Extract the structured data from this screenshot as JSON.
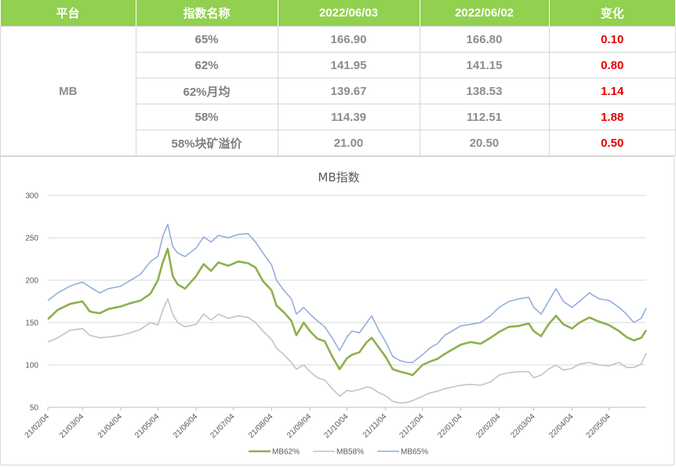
{
  "table": {
    "headers": [
      "平台",
      "指数名称",
      "2022/06/03",
      "2022/06/02",
      "变化"
    ],
    "platform": "MB",
    "rows": [
      {
        "name": "65%",
        "d1": "166.90",
        "d2": "166.80",
        "change": "0.10"
      },
      {
        "name": "62%",
        "d1": "141.95",
        "d2": "141.15",
        "change": "0.80"
      },
      {
        "name": "62%月均",
        "d1": "139.67",
        "d2": "138.53",
        "change": "1.14"
      },
      {
        "name": "58%",
        "d1": "114.39",
        "d2": "112.51",
        "change": "1.88"
      },
      {
        "name": "58%块矿溢价",
        "d1": "21.00",
        "d2": "20.50",
        "change": "0.50"
      }
    ]
  },
  "chart_data": {
    "type": "line",
    "title": "MB指数",
    "xlabel": "",
    "ylabel": "",
    "ylim": [
      50,
      300
    ],
    "yticks": [
      "300",
      "250",
      "200",
      "150",
      "100",
      "50"
    ],
    "xlim": [
      "2021-02-04",
      "2022-06-03"
    ],
    "xticks": [
      "21/02/04",
      "21/03/04",
      "21/04/04",
      "21/05/04",
      "21/06/04",
      "21/07/04",
      "21/08/04",
      "21/09/04",
      "21/10/04",
      "21/11/04",
      "21/12/04",
      "22/01/04",
      "22/02/04",
      "22/03/04",
      "22/04/04",
      "22/05/04"
    ],
    "grid": "horizontal",
    "legend": "bottom",
    "series": [
      {
        "name": "MB62%",
        "color": "#8db04e",
        "points": [
          [
            "2021-02-04",
            154
          ],
          [
            "2021-02-12",
            165
          ],
          [
            "2021-02-22",
            172
          ],
          [
            "2021-03-04",
            175
          ],
          [
            "2021-03-10",
            163
          ],
          [
            "2021-03-18",
            161
          ],
          [
            "2021-03-25",
            166
          ],
          [
            "2021-04-04",
            169
          ],
          [
            "2021-04-12",
            173
          ],
          [
            "2021-04-20",
            176
          ],
          [
            "2021-04-28",
            184
          ],
          [
            "2021-05-04",
            200
          ],
          [
            "2021-05-08",
            221
          ],
          [
            "2021-05-12",
            237
          ],
          [
            "2021-05-16",
            205
          ],
          [
            "2021-05-20",
            195
          ],
          [
            "2021-05-26",
            190
          ],
          [
            "2021-06-04",
            205
          ],
          [
            "2021-06-10",
            219
          ],
          [
            "2021-06-16",
            211
          ],
          [
            "2021-06-22",
            221
          ],
          [
            "2021-06-30",
            217
          ],
          [
            "2021-07-08",
            222
          ],
          [
            "2021-07-16",
            220
          ],
          [
            "2021-07-22",
            215
          ],
          [
            "2021-07-28",
            199
          ],
          [
            "2021-08-04",
            188
          ],
          [
            "2021-08-08",
            170
          ],
          [
            "2021-08-14",
            162
          ],
          [
            "2021-08-20",
            152
          ],
          [
            "2021-08-24",
            135
          ],
          [
            "2021-08-30",
            150
          ],
          [
            "2021-09-04",
            140
          ],
          [
            "2021-09-10",
            131
          ],
          [
            "2021-09-16",
            128
          ],
          [
            "2021-09-22",
            110
          ],
          [
            "2021-09-28",
            95
          ],
          [
            "2021-10-04",
            108
          ],
          [
            "2021-10-08",
            112
          ],
          [
            "2021-10-14",
            115
          ],
          [
            "2021-10-20",
            127
          ],
          [
            "2021-10-24",
            132
          ],
          [
            "2021-10-30",
            120
          ],
          [
            "2021-11-04",
            110
          ],
          [
            "2021-11-10",
            95
          ],
          [
            "2021-11-16",
            92
          ],
          [
            "2021-11-22",
            90
          ],
          [
            "2021-11-26",
            88
          ],
          [
            "2021-12-04",
            100
          ],
          [
            "2021-12-10",
            104
          ],
          [
            "2021-12-16",
            107
          ],
          [
            "2021-12-22",
            113
          ],
          [
            "2022-01-04",
            124
          ],
          [
            "2022-01-12",
            127
          ],
          [
            "2022-01-20",
            125
          ],
          [
            "2022-01-28",
            132
          ],
          [
            "2022-02-04",
            139
          ],
          [
            "2022-02-12",
            145
          ],
          [
            "2022-02-20",
            146
          ],
          [
            "2022-02-28",
            149
          ],
          [
            "2022-03-04",
            140
          ],
          [
            "2022-03-10",
            134
          ],
          [
            "2022-03-16",
            148
          ],
          [
            "2022-03-22",
            158
          ],
          [
            "2022-03-28",
            148
          ],
          [
            "2022-04-04",
            143
          ],
          [
            "2022-04-10",
            150
          ],
          [
            "2022-04-18",
            156
          ],
          [
            "2022-04-26",
            151
          ],
          [
            "2022-05-04",
            147
          ],
          [
            "2022-05-12",
            140
          ],
          [
            "2022-05-18",
            133
          ],
          [
            "2022-05-24",
            129
          ],
          [
            "2022-05-30",
            132
          ],
          [
            "2022-06-03",
            141
          ]
        ]
      },
      {
        "name": "MB58%",
        "color": "#c0c0c0",
        "points": [
          [
            "2021-02-04",
            127
          ],
          [
            "2021-02-12",
            132
          ],
          [
            "2021-02-22",
            141
          ],
          [
            "2021-03-04",
            143
          ],
          [
            "2021-03-10",
            135
          ],
          [
            "2021-03-18",
            132
          ],
          [
            "2021-03-25",
            133
          ],
          [
            "2021-04-04",
            135
          ],
          [
            "2021-04-12",
            138
          ],
          [
            "2021-04-20",
            142
          ],
          [
            "2021-04-28",
            150
          ],
          [
            "2021-05-04",
            147
          ],
          [
            "2021-05-08",
            165
          ],
          [
            "2021-05-12",
            178
          ],
          [
            "2021-05-16",
            160
          ],
          [
            "2021-05-20",
            150
          ],
          [
            "2021-05-26",
            145
          ],
          [
            "2021-06-04",
            148
          ],
          [
            "2021-06-10",
            160
          ],
          [
            "2021-06-16",
            153
          ],
          [
            "2021-06-22",
            160
          ],
          [
            "2021-06-30",
            155
          ],
          [
            "2021-07-08",
            158
          ],
          [
            "2021-07-16",
            156
          ],
          [
            "2021-07-22",
            150
          ],
          [
            "2021-07-28",
            140
          ],
          [
            "2021-08-04",
            130
          ],
          [
            "2021-08-08",
            120
          ],
          [
            "2021-08-14",
            112
          ],
          [
            "2021-08-20",
            103
          ],
          [
            "2021-08-24",
            95
          ],
          [
            "2021-08-30",
            100
          ],
          [
            "2021-09-04",
            92
          ],
          [
            "2021-09-10",
            85
          ],
          [
            "2021-09-16",
            82
          ],
          [
            "2021-09-22",
            72
          ],
          [
            "2021-09-28",
            63
          ],
          [
            "2021-10-04",
            70
          ],
          [
            "2021-10-08",
            69
          ],
          [
            "2021-10-14",
            71
          ],
          [
            "2021-10-20",
            74
          ],
          [
            "2021-10-24",
            73
          ],
          [
            "2021-10-30",
            67
          ],
          [
            "2021-11-04",
            64
          ],
          [
            "2021-11-10",
            57
          ],
          [
            "2021-11-16",
            55
          ],
          [
            "2021-11-22",
            56
          ],
          [
            "2021-11-26",
            58
          ],
          [
            "2021-12-04",
            63
          ],
          [
            "2021-12-10",
            67
          ],
          [
            "2021-12-16",
            69
          ],
          [
            "2021-12-22",
            72
          ],
          [
            "2022-01-04",
            76
          ],
          [
            "2022-01-12",
            77
          ],
          [
            "2022-01-20",
            76
          ],
          [
            "2022-01-28",
            80
          ],
          [
            "2022-02-04",
            88
          ],
          [
            "2022-02-12",
            91
          ],
          [
            "2022-02-20",
            92
          ],
          [
            "2022-02-28",
            92
          ],
          [
            "2022-03-04",
            85
          ],
          [
            "2022-03-10",
            88
          ],
          [
            "2022-03-16",
            95
          ],
          [
            "2022-03-22",
            100
          ],
          [
            "2022-03-28",
            94
          ],
          [
            "2022-04-04",
            96
          ],
          [
            "2022-04-10",
            101
          ],
          [
            "2022-04-18",
            103
          ],
          [
            "2022-04-26",
            100
          ],
          [
            "2022-05-04",
            99
          ],
          [
            "2022-05-12",
            103
          ],
          [
            "2022-05-18",
            97
          ],
          [
            "2022-05-24",
            97
          ],
          [
            "2022-05-30",
            101
          ],
          [
            "2022-06-03",
            114
          ]
        ]
      },
      {
        "name": "MB65%",
        "color": "#8eaadb",
        "points": [
          [
            "2021-02-04",
            176
          ],
          [
            "2021-02-12",
            185
          ],
          [
            "2021-02-22",
            193
          ],
          [
            "2021-03-04",
            198
          ],
          [
            "2021-03-10",
            192
          ],
          [
            "2021-03-18",
            185
          ],
          [
            "2021-03-25",
            190
          ],
          [
            "2021-04-04",
            193
          ],
          [
            "2021-04-12",
            200
          ],
          [
            "2021-04-20",
            207
          ],
          [
            "2021-04-28",
            222
          ],
          [
            "2021-05-04",
            228
          ],
          [
            "2021-05-08",
            252
          ],
          [
            "2021-05-12",
            266
          ],
          [
            "2021-05-16",
            240
          ],
          [
            "2021-05-20",
            232
          ],
          [
            "2021-05-26",
            228
          ],
          [
            "2021-06-04",
            238
          ],
          [
            "2021-06-10",
            251
          ],
          [
            "2021-06-16",
            245
          ],
          [
            "2021-06-22",
            253
          ],
          [
            "2021-06-30",
            250
          ],
          [
            "2021-07-08",
            254
          ],
          [
            "2021-07-16",
            255
          ],
          [
            "2021-07-22",
            245
          ],
          [
            "2021-07-28",
            232
          ],
          [
            "2021-08-04",
            218
          ],
          [
            "2021-08-08",
            200
          ],
          [
            "2021-08-14",
            188
          ],
          [
            "2021-08-20",
            178
          ],
          [
            "2021-08-24",
            160
          ],
          [
            "2021-08-30",
            168
          ],
          [
            "2021-09-04",
            160
          ],
          [
            "2021-09-10",
            152
          ],
          [
            "2021-09-16",
            145
          ],
          [
            "2021-09-22",
            132
          ],
          [
            "2021-09-28",
            117
          ],
          [
            "2021-10-04",
            133
          ],
          [
            "2021-10-08",
            140
          ],
          [
            "2021-10-14",
            138
          ],
          [
            "2021-10-20",
            150
          ],
          [
            "2021-10-24",
            158
          ],
          [
            "2021-10-30",
            140
          ],
          [
            "2021-11-04",
            128
          ],
          [
            "2021-11-10",
            110
          ],
          [
            "2021-11-16",
            105
          ],
          [
            "2021-11-22",
            103
          ],
          [
            "2021-11-26",
            103
          ],
          [
            "2021-12-04",
            112
          ],
          [
            "2021-12-10",
            120
          ],
          [
            "2021-12-16",
            125
          ],
          [
            "2021-12-22",
            135
          ],
          [
            "2022-01-04",
            146
          ],
          [
            "2022-01-12",
            148
          ],
          [
            "2022-01-20",
            150
          ],
          [
            "2022-01-28",
            158
          ],
          [
            "2022-02-04",
            168
          ],
          [
            "2022-02-12",
            175
          ],
          [
            "2022-02-20",
            178
          ],
          [
            "2022-02-28",
            180
          ],
          [
            "2022-03-04",
            168
          ],
          [
            "2022-03-10",
            160
          ],
          [
            "2022-03-16",
            175
          ],
          [
            "2022-03-22",
            190
          ],
          [
            "2022-03-28",
            175
          ],
          [
            "2022-04-04",
            168
          ],
          [
            "2022-04-10",
            175
          ],
          [
            "2022-04-18",
            185
          ],
          [
            "2022-04-26",
            178
          ],
          [
            "2022-05-04",
            176
          ],
          [
            "2022-05-12",
            168
          ],
          [
            "2022-05-18",
            160
          ],
          [
            "2022-05-24",
            150
          ],
          [
            "2022-05-30",
            155
          ],
          [
            "2022-06-03",
            167
          ]
        ]
      }
    ]
  }
}
